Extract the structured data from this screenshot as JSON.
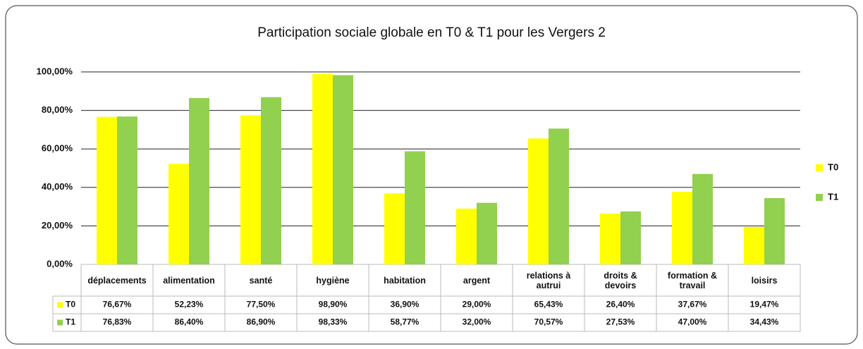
{
  "chart_data": {
    "type": "bar",
    "title": "Participation  sociale globale en T0 & T1 pour les Vergers 2",
    "categories": [
      "déplacements",
      "alimentation",
      "santé",
      "hygiène",
      "habitation",
      "argent",
      "relations à autrui",
      "droits & devoirs",
      "formation & travail",
      "loisirs"
    ],
    "series": [
      {
        "name": "T0",
        "color": "#ffff00",
        "values": [
          76.67,
          52.23,
          77.5,
          98.9,
          36.9,
          29.0,
          65.43,
          26.4,
          37.67,
          19.47
        ],
        "value_labels": [
          "76,67%",
          "52,23%",
          "77,50%",
          "98,90%",
          "36,90%",
          "29,00%",
          "65,43%",
          "26,40%",
          "37,67%",
          "19,47%"
        ]
      },
      {
        "name": "T1",
        "color": "#92d050",
        "values": [
          76.83,
          86.4,
          86.9,
          98.33,
          58.77,
          32.0,
          70.57,
          27.53,
          47.0,
          34.43
        ],
        "value_labels": [
          "76,83%",
          "86,40%",
          "86,90%",
          "98,33%",
          "58,77%",
          "32,00%",
          "70,57%",
          "27,53%",
          "47,00%",
          "34,43%"
        ]
      }
    ],
    "ylim": [
      0,
      100
    ],
    "yticks": [
      {
        "value": 0,
        "label": "0,00%"
      },
      {
        "value": 20,
        "label": "20,00%"
      },
      {
        "value": 40,
        "label": "40,00%"
      },
      {
        "value": 60,
        "label": "60,00%"
      },
      {
        "value": 80,
        "label": "80,00%"
      },
      {
        "value": 100,
        "label": "100,00%"
      }
    ],
    "grid": true,
    "legend": "right"
  }
}
